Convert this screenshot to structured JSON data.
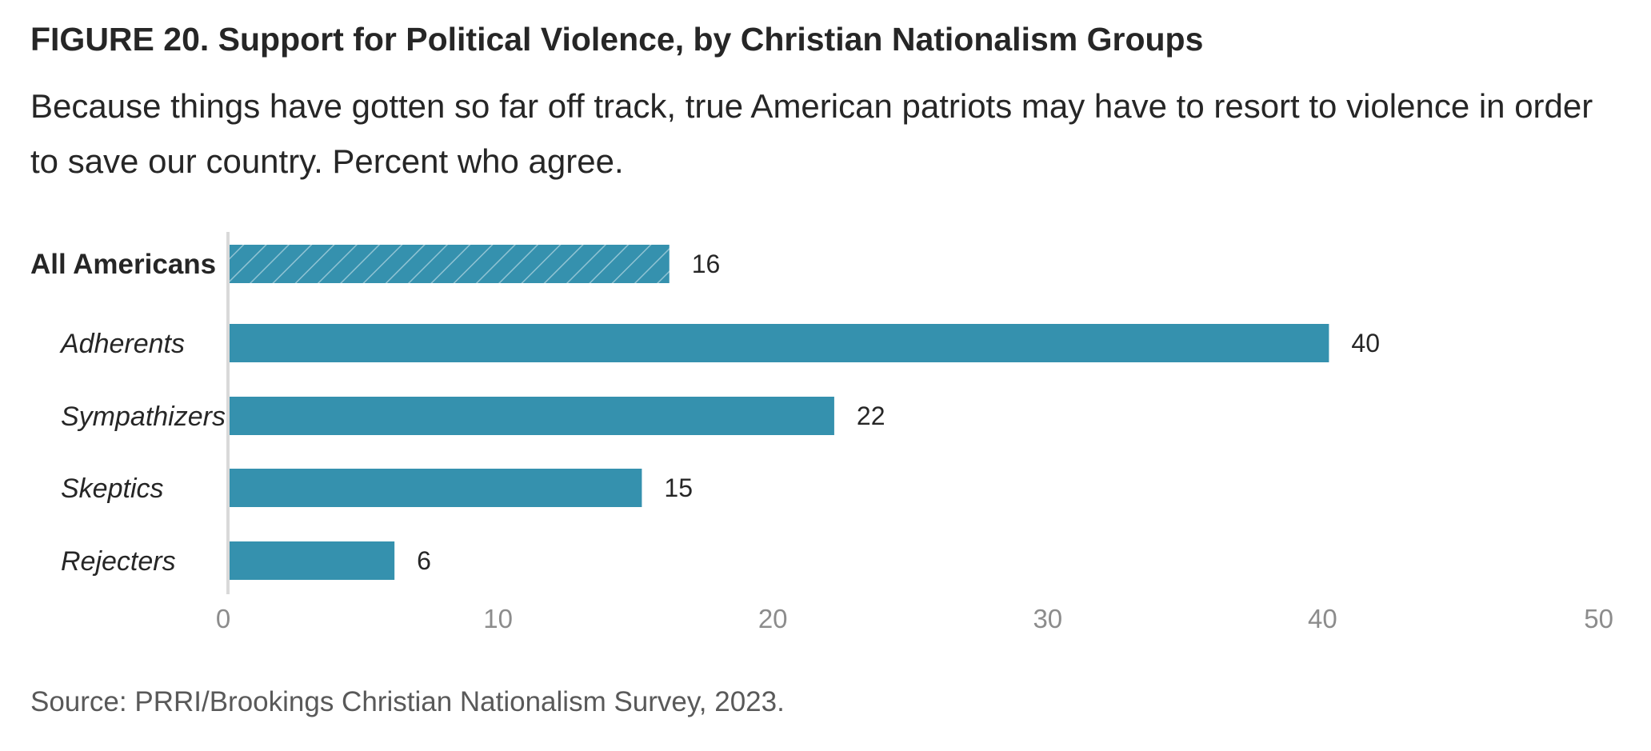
{
  "figure": {
    "title": "FIGURE 20. Support for Political Violence, by Christian Nationalism Groups",
    "subtitle": "Because things have gotten so far off track, true American patriots may have to resort to violence in order to save our country. Percent who agree.",
    "source": "Source: PRRI/Brookings Christian Nationalism Survey, 2023."
  },
  "colors": {
    "bar": "#3591ae",
    "axis_line": "#d9d9d9",
    "tick_label": "#8c8c8c",
    "text": "#262626"
  },
  "chart_data": {
    "type": "bar",
    "orientation": "horizontal",
    "title": "FIGURE 20. Support for Political Violence, by Christian Nationalism Groups",
    "subtitle": "Because things have gotten so far off track, true American patriots may have to resort to violence in order to save our country. Percent who agree.",
    "categories": [
      "All Americans",
      "Adherents",
      "Sympathizers",
      "Skeptics",
      "Rejecters"
    ],
    "values": [
      16,
      40,
      22,
      15,
      6
    ],
    "data_labels": [
      "16",
      "40",
      "22",
      "15",
      "6"
    ],
    "category_styles": [
      "bold",
      "italic",
      "italic",
      "italic",
      "italic"
    ],
    "bar_patterns": [
      "hatched",
      "solid",
      "solid",
      "solid",
      "solid"
    ],
    "xlim": [
      0,
      50
    ],
    "xticks": [
      0,
      10,
      20,
      30,
      40,
      50
    ],
    "xlabel": "",
    "ylabel": "",
    "grid": false,
    "legend": "none"
  }
}
